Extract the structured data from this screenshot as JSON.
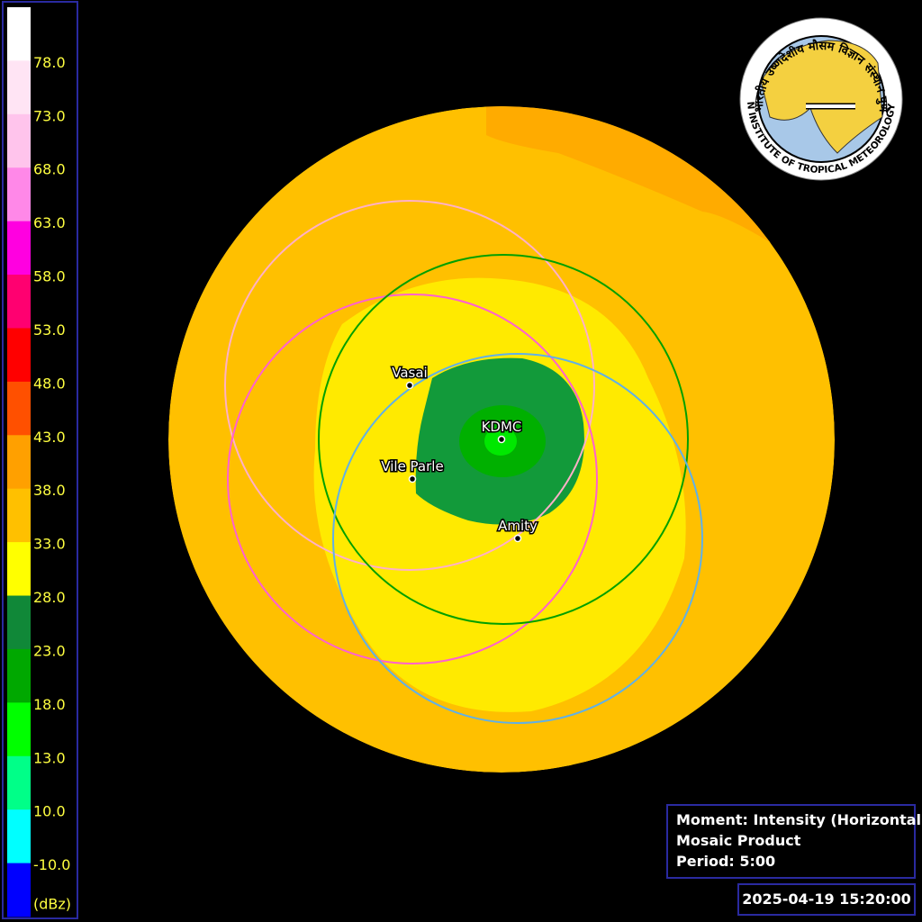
{
  "legend": {
    "labels": [
      "78.0",
      "73.0",
      "68.0",
      "63.0",
      "58.0",
      "53.0",
      "48.0",
      "43.0",
      "38.0",
      "33.0",
      "28.0",
      "23.0",
      "18.0",
      "13.0",
      "10.0",
      "-10.0"
    ],
    "colors": [
      "#ffffff",
      "#ffe4f4",
      "#ffc4ec",
      "#ff88e8",
      "#ff00e0",
      "#ff0070",
      "#ff0000",
      "#ff5000",
      "#ffa000",
      "#ffc000",
      "#ffff00",
      "#108838",
      "#00a800",
      "#00ff00",
      "#00ff88",
      "#00ffff",
      "#0000ff"
    ],
    "unit": "(dBz)"
  },
  "stations": [
    {
      "name": "Vasai"
    },
    {
      "name": "KDMC"
    },
    {
      "name": "Vile Parle"
    },
    {
      "name": "Amity"
    }
  ],
  "info": {
    "lines": [
      "Moment: Intensity (Horizontal)",
      "Mosaic Product",
      "Period: 5:00"
    ]
  },
  "timestamp": "2025-04-19 15:20:00",
  "logo": {
    "hindi": "भारतीय उष्णदेशीय मौसम विज्ञान संस्थान पुणे",
    "english": "INDIAN INSTITUTE OF TROPICAL METEOROLOGY PUNE"
  }
}
